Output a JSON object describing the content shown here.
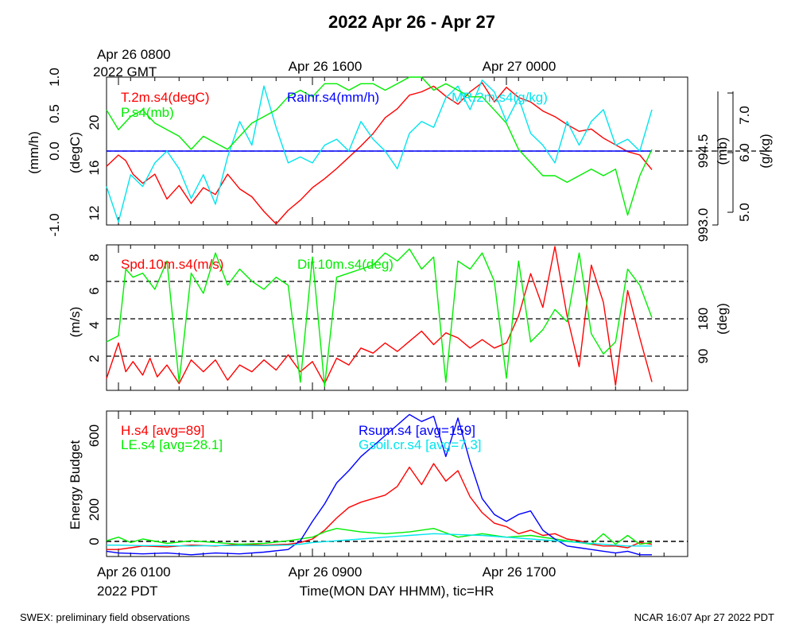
{
  "title": "2022 Apr 26 - Apr 27",
  "top_time_labels": {
    "first_line1": "Apr 26 0800",
    "first_line2": "2022 GMT",
    "second": "Apr 26 1600",
    "third": "Apr 27 0000"
  },
  "bottom_time_labels": {
    "first_line1": "Apr 26 0100",
    "first_line2": "2022 PDT",
    "second": "Apr 26 0900",
    "third": "Apr 26 1700"
  },
  "xlabel": "Time(MON DAY HHMM), tic=HR",
  "footer_left": "SWEX: preliminary field observations",
  "footer_right": "NCAR 16:07 Apr 27 2022 PDT",
  "colors": {
    "red": "#ff0000",
    "green": "#00ee00",
    "blue": "#0000ff",
    "cyan": "#00e5ee",
    "black": "#000000"
  },
  "chart_data": [
    {
      "type": "line",
      "x_hours_pdt_ticks": [
        "Apr 26 0100",
        "Apr 26 0900",
        "Apr 26 1700"
      ],
      "left_axis_outer": {
        "label": "(mm/h)",
        "ticks": [
          "-1.0",
          "0.0",
          "0.5",
          "1.0"
        ],
        "ylim": [
          -1.0,
          1.0
        ]
      },
      "left_axis_inner": {
        "label": "(degC)",
        "ticks": [
          "12",
          "16",
          "20"
        ],
        "ylim": [
          11.3,
          24.4
        ]
      },
      "right_axis_inner": {
        "label": "(mb)",
        "ticks": [
          "993.0",
          "994.5"
        ],
        "ylim": [
          992.85,
          995.1
        ]
      },
      "right_axis_outer": {
        "label": "(g/kg)",
        "ticks": [
          "5.0",
          "6.0",
          "7.0"
        ],
        "ylim": [
          4.85,
          7.35
        ]
      },
      "reference_line": {
        "axis": "mm/h",
        "value": 0.0
      },
      "series": [
        {
          "name": "T.2m.s4(degC)",
          "color": "#ff0000",
          "axis": "degC",
          "x": [
            -0.5,
            0,
            0.3,
            0.6,
            1.0,
            1.5,
            2.0,
            2.5,
            3.0,
            3.5,
            4.0,
            4.5,
            5.0,
            5.5,
            6.0,
            6.5,
            7.0,
            7.5,
            8.0,
            8.5,
            9.0,
            9.5,
            10.0,
            10.5,
            11.0,
            11.5,
            12.0,
            12.5,
            13.0,
            13.5,
            14.0,
            14.5,
            15.0,
            15.5,
            16.0,
            16.5,
            17.0,
            17.5,
            18.0,
            18.5,
            19.0,
            19.5,
            20.0,
            20.5,
            21.0,
            21.5,
            22.0
          ],
          "values": [
            16.5,
            17.5,
            17.0,
            15.8,
            15.0,
            15.8,
            13.6,
            14.8,
            13.2,
            14.6,
            14.0,
            15.8,
            14.5,
            13.8,
            12.5,
            11.4,
            12.6,
            13.5,
            14.6,
            15.4,
            16.3,
            17.3,
            18.3,
            19.4,
            20.8,
            21.6,
            22.8,
            23.1,
            23.6,
            22.7,
            22.0,
            23.1,
            23.9,
            22.2,
            23.5,
            22.6,
            22.2,
            21.4,
            20.9,
            20.2,
            19.6,
            19.8,
            19.0,
            18.4,
            17.8,
            17.5,
            16.2
          ]
        },
        {
          "name": "Rainr.s4(mm/h)",
          "color": "#0000ff",
          "axis": "mm/h",
          "x": [
            -0.5,
            22.0
          ],
          "values": [
            0.0,
            0.0
          ]
        },
        {
          "name": "MR.2m.s4(g/kg)",
          "color": "#00e5ee",
          "axis": "g/kg",
          "x": [
            -0.5,
            0,
            0.5,
            1.0,
            1.5,
            2.0,
            2.5,
            3.0,
            3.5,
            4.0,
            4.5,
            5.0,
            5.5,
            6.0,
            6.5,
            7.0,
            7.5,
            8.0,
            8.5,
            9.0,
            9.5,
            10.0,
            10.5,
            11.0,
            11.5,
            12.0,
            12.5,
            13.0,
            13.5,
            14.0,
            14.5,
            15.0,
            15.5,
            16.0,
            16.5,
            17.0,
            17.5,
            18.0,
            18.5,
            19.0,
            19.5,
            20.0,
            20.5,
            21.0,
            21.5,
            22.0
          ],
          "values": [
            5.5,
            4.9,
            5.7,
            5.5,
            5.9,
            6.1,
            5.8,
            5.3,
            5.7,
            5.2,
            6.0,
            6.6,
            6.2,
            7.2,
            6.5,
            5.9,
            6.0,
            5.9,
            6.2,
            6.3,
            6.1,
            6.6,
            6.3,
            6.1,
            5.8,
            6.4,
            6.6,
            6.5,
            7.0,
            7.2,
            6.8,
            7.3,
            7.1,
            6.6,
            7.0,
            6.4,
            6.2,
            5.9,
            6.6,
            6.2,
            6.6,
            6.8,
            6.2,
            6.3,
            6.1,
            6.8
          ]
        },
        {
          "name": "P.s4(mb)",
          "color": "#00ee00",
          "axis": "mb",
          "x": [
            -0.5,
            0,
            0.5,
            1.0,
            1.5,
            2.0,
            2.5,
            3.0,
            3.5,
            4.0,
            4.5,
            5.0,
            5.5,
            6.0,
            6.5,
            7.0,
            7.5,
            8.0,
            8.5,
            9.0,
            9.5,
            10.0,
            10.5,
            11.0,
            11.5,
            12.0,
            12.5,
            13.0,
            13.5,
            14.0,
            14.5,
            15.0,
            15.5,
            16.0,
            16.5,
            17.0,
            17.5,
            18.0,
            18.5,
            19.0,
            19.5,
            20.0,
            20.5,
            21.0,
            21.5,
            22.0
          ],
          "values": [
            994.6,
            994.3,
            994.5,
            994.6,
            994.4,
            994.3,
            994.2,
            994.0,
            994.2,
            994.1,
            994.0,
            994.2,
            994.4,
            994.5,
            994.6,
            994.8,
            994.9,
            994.8,
            995.0,
            995.0,
            994.9,
            995.0,
            995.0,
            994.9,
            995.0,
            995.1,
            995.1,
            994.9,
            995.0,
            994.9,
            994.8,
            994.8,
            994.6,
            994.4,
            994.0,
            993.8,
            993.6,
            993.6,
            993.5,
            993.6,
            993.7,
            993.6,
            993.7,
            993.0,
            993.6,
            994.0
          ]
        }
      ]
    },
    {
      "type": "line",
      "left_axis": {
        "label": "(m/s)",
        "ticks": [
          "2",
          "4",
          "6",
          "8"
        ],
        "ylim": [
          0.1,
          8.7
        ]
      },
      "right_axis": {
        "label": "(deg)",
        "ticks": [
          "90",
          "180"
        ],
        "ylim": [
          0,
          360
        ]
      },
      "reference_lines_deg": [
        90,
        180,
        270
      ],
      "series": [
        {
          "name": "Spd.10m.s4(m/s)",
          "color": "#ff0000",
          "axis": "m/s",
          "x": [
            -0.5,
            0,
            0.3,
            0.6,
            1.0,
            1.3,
            1.6,
            2.0,
            2.5,
            3.0,
            3.5,
            4.0,
            4.5,
            5.0,
            5.5,
            6.0,
            6.5,
            7.0,
            7.5,
            8.0,
            8.5,
            9.0,
            9.5,
            10.0,
            10.5,
            11.0,
            11.5,
            12.0,
            12.5,
            13.0,
            13.5,
            14.0,
            14.5,
            15.0,
            15.5,
            16.0,
            16.5,
            17.0,
            17.5,
            18.0,
            18.5,
            19.0,
            19.5,
            20.0,
            20.5,
            21.0,
            21.5,
            22.0
          ],
          "values": [
            0.8,
            2.9,
            1.2,
            1.8,
            1.0,
            2.0,
            0.9,
            1.6,
            0.5,
            1.9,
            1.2,
            1.9,
            0.7,
            1.6,
            1.2,
            1.9,
            1.3,
            2.2,
            1.2,
            1.8,
            0.5,
            2.0,
            1.6,
            2.6,
            2.3,
            2.9,
            2.4,
            3.0,
            3.6,
            2.8,
            3.5,
            3.2,
            2.6,
            3.1,
            2.6,
            2.9,
            4.5,
            7.0,
            5.0,
            8.6,
            4.5,
            1.5,
            7.5,
            5.3,
            0.4,
            6.0,
            3.2,
            0.6
          ]
        },
        {
          "name": "Dir.10m.s4(deg)",
          "color": "#00ee00",
          "axis": "deg",
          "x": [
            -0.5,
            0,
            0.3,
            0.6,
            1.0,
            1.5,
            2.0,
            2.5,
            3.0,
            3.5,
            4.0,
            4.5,
            5.0,
            5.5,
            6.0,
            6.5,
            7.0,
            7.5,
            8.0,
            8.5,
            9.0,
            9.5,
            10.0,
            10.5,
            11.0,
            11.5,
            12.0,
            12.5,
            13.0,
            13.5,
            14.0,
            14.5,
            15.0,
            15.5,
            16.0,
            16.5,
            17.0,
            17.5,
            18.0,
            18.5,
            19.0,
            19.5,
            20.0,
            20.5,
            21.0,
            21.5,
            22.0
          ],
          "values": [
            120,
            135,
            300,
            280,
            290,
            250,
            320,
            20,
            290,
            240,
            340,
            260,
            300,
            270,
            250,
            280,
            260,
            20,
            330,
            10,
            280,
            290,
            300,
            310,
            340,
            320,
            350,
            300,
            330,
            20,
            320,
            300,
            340,
            270,
            30,
            320,
            120,
            150,
            200,
            170,
            340,
            140,
            90,
            120,
            300,
            260,
            180
          ]
        }
      ]
    },
    {
      "type": "line",
      "ylabel": "Energy Budget",
      "y_ticks": [
        "0",
        "200",
        "600"
      ],
      "ylim": [
        -70,
        760
      ],
      "reference_line": {
        "value": 0
      },
      "series": [
        {
          "name": "H.s4 [avg=89]",
          "color": "#ff0000",
          "x": [
            -0.5,
            0,
            0.5,
            1,
            2,
            3,
            4,
            5,
            6,
            7,
            7.5,
            8,
            8.5,
            9,
            9.5,
            10,
            10.5,
            11,
            11.5,
            12,
            12.5,
            13,
            13.5,
            14,
            14.5,
            15,
            15.5,
            16,
            16.5,
            17,
            17.5,
            18,
            18.5,
            19,
            19.5,
            20,
            20.5,
            21,
            21.5,
            22
          ],
          "values": [
            -30,
            -30,
            -20,
            -10,
            -15,
            -5,
            -10,
            0,
            -5,
            0,
            10,
            30,
            80,
            150,
            210,
            240,
            260,
            280,
            330,
            440,
            340,
            460,
            360,
            420,
            270,
            180,
            120,
            100,
            60,
            80,
            50,
            60,
            30,
            20,
            0,
            -10,
            -10,
            -20,
            10,
            0
          ]
        },
        {
          "name": "LE.s4 [avg=28.1]",
          "color": "#00ee00",
          "x": [
            -0.5,
            0,
            0.5,
            1,
            2,
            3,
            4,
            5,
            6,
            7,
            8,
            8.5,
            9,
            9.5,
            10,
            11,
            12,
            13,
            14,
            15,
            16,
            17,
            18,
            19,
            19.5,
            20,
            20.5,
            21,
            21.5,
            22
          ],
          "values": [
            20,
            40,
            10,
            30,
            5,
            20,
            10,
            0,
            5,
            20,
            40,
            70,
            90,
            80,
            70,
            60,
            70,
            90,
            40,
            60,
            40,
            50,
            30,
            10,
            0,
            60,
            0,
            50,
            0,
            10
          ]
        },
        {
          "name": "Rsum.s4 [avg=159]",
          "color": "#0000ff",
          "x": [
            -0.5,
            0,
            1,
            2,
            3,
            4,
            5,
            6,
            7,
            7.5,
            8,
            8.5,
            9,
            9.5,
            10,
            10.5,
            11,
            11.5,
            12,
            12.5,
            13,
            13.5,
            14,
            14.5,
            15,
            15.5,
            16,
            16.5,
            17,
            17.5,
            18,
            18.5,
            19,
            19.5,
            20,
            20.5,
            21,
            21.5,
            22
          ],
          "values": [
            -40,
            -50,
            -55,
            -50,
            -60,
            -50,
            -55,
            -45,
            -30,
            20,
            130,
            230,
            350,
            420,
            500,
            560,
            620,
            680,
            740,
            700,
            730,
            500,
            720,
            470,
            260,
            170,
            130,
            170,
            190,
            80,
            30,
            -10,
            -20,
            -30,
            -40,
            -50,
            -40,
            -60,
            -60
          ]
        },
        {
          "name": "Gsoil.cr.s4 [avg=7.3]",
          "color": "#00e5ee",
          "x": [
            -0.5,
            0,
            1,
            2,
            3,
            4,
            5,
            6,
            7,
            7.5,
            8,
            9,
            10,
            11,
            12,
            13,
            14,
            15,
            16,
            17,
            18,
            19,
            20,
            21,
            22
          ],
          "values": [
            -5,
            -5,
            -8,
            -8,
            -10,
            -8,
            -8,
            -8,
            -5,
            0,
            10,
            20,
            30,
            40,
            50,
            60,
            55,
            50,
            40,
            30,
            20,
            10,
            0,
            -10,
            -10
          ]
        }
      ]
    }
  ]
}
